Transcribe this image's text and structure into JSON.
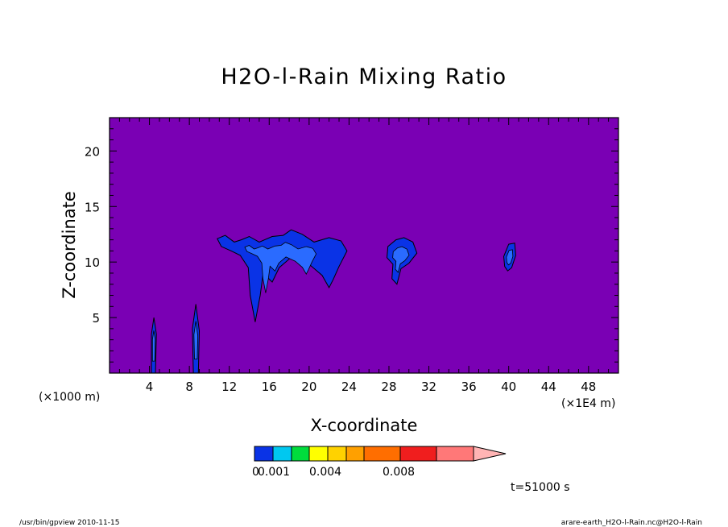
{
  "chart_data": {
    "type": "contour",
    "title": "H2O-l-Rain Mixing Ratio",
    "xlabel": "X-coordinate",
    "ylabel": "Z-coordinate",
    "x_unit": "(×1E4 m)",
    "y_unit": "(×1000 m)",
    "x_ticks": [
      4,
      8,
      12,
      16,
      20,
      24,
      28,
      32,
      36,
      40,
      44,
      48
    ],
    "y_ticks": [
      5,
      10,
      15,
      20
    ],
    "xlim": [
      0,
      51
    ],
    "ylim": [
      0,
      23
    ],
    "background_color": "#7a00b4",
    "contours": [
      {
        "name": "a",
        "fill": "#0a33e6",
        "inner": "#2a6bff",
        "points": [
          [
            4.2,
            0
          ],
          [
            4.6,
            0
          ],
          [
            4.7,
            3.5
          ],
          [
            4.45,
            5
          ],
          [
            4.2,
            3.5
          ]
        ]
      },
      {
        "name": "b",
        "fill": "#0a33e6",
        "inner": "#2a6bff",
        "points": [
          [
            8.4,
            0
          ],
          [
            8.9,
            0
          ],
          [
            9.0,
            3.8
          ],
          [
            8.65,
            6.2
          ],
          [
            8.3,
            4
          ]
        ]
      },
      {
        "name": "c",
        "fill": "#0a33e6",
        "inner": "#2a6bff",
        "points": [
          [
            10.8,
            12.1
          ],
          [
            11.6,
            12.4
          ],
          [
            12.5,
            11.8
          ],
          [
            13.2,
            12.0
          ],
          [
            14.0,
            12.3
          ],
          [
            15.0,
            11.8
          ],
          [
            16.3,
            12.3
          ],
          [
            17.4,
            12.4
          ],
          [
            18.2,
            12.9
          ],
          [
            19.3,
            12.5
          ],
          [
            20.5,
            11.8
          ],
          [
            22.0,
            12.2
          ],
          [
            23.2,
            11.9
          ],
          [
            23.8,
            11.0
          ],
          [
            23.0,
            9.6
          ],
          [
            22.4,
            8.4
          ],
          [
            22.0,
            7.7
          ],
          [
            21.3,
            8.8
          ],
          [
            20.0,
            9.8
          ],
          [
            18.3,
            10.5
          ],
          [
            17.0,
            9.5
          ],
          [
            16.3,
            8.2
          ],
          [
            15.4,
            9.0
          ],
          [
            15.1,
            7.0
          ],
          [
            14.6,
            4.6
          ],
          [
            14.1,
            7.0
          ],
          [
            13.9,
            9.5
          ],
          [
            13.1,
            10.6
          ],
          [
            12.2,
            11.0
          ],
          [
            11.2,
            11.4
          ]
        ]
      },
      {
        "name": "d",
        "fill": "#0a33e6",
        "inner": "#2a6bff",
        "points": [
          [
            27.9,
            11.4
          ],
          [
            28.7,
            12.0
          ],
          [
            29.5,
            12.2
          ],
          [
            30.4,
            11.8
          ],
          [
            30.8,
            10.8
          ],
          [
            30.0,
            9.9
          ],
          [
            29.2,
            9.4
          ],
          [
            28.8,
            8.0
          ],
          [
            28.3,
            8.5
          ],
          [
            28.4,
            9.8
          ],
          [
            27.8,
            10.4
          ]
        ]
      },
      {
        "name": "e",
        "fill": "#0a33e6",
        "inner": "#2a6bff",
        "points": [
          [
            39.5,
            10.5
          ],
          [
            40.0,
            11.6
          ],
          [
            40.6,
            11.7
          ],
          [
            40.7,
            10.6
          ],
          [
            40.3,
            9.5
          ],
          [
            39.9,
            9.2
          ],
          [
            39.6,
            9.6
          ]
        ]
      }
    ],
    "colorbar": {
      "colors": [
        "#0a33e6",
        "#00c8f0",
        "#00dc3c",
        "#ffff00",
        "#ffd200",
        "#ffa000",
        "#ff6e00",
        "#f01e1e",
        "#ff7878"
      ],
      "arrow_color": "#ffb4b4",
      "tick_labels": [
        "0.001",
        "0.004",
        "0.008"
      ],
      "zero_label": "0"
    },
    "time_label": "t=51000 s",
    "footer_left": "/usr/bin/gpview  2010-11-15",
    "footer_right": "arare-earth_H2O-l-Rain.nc@H2O-l-Rain"
  }
}
